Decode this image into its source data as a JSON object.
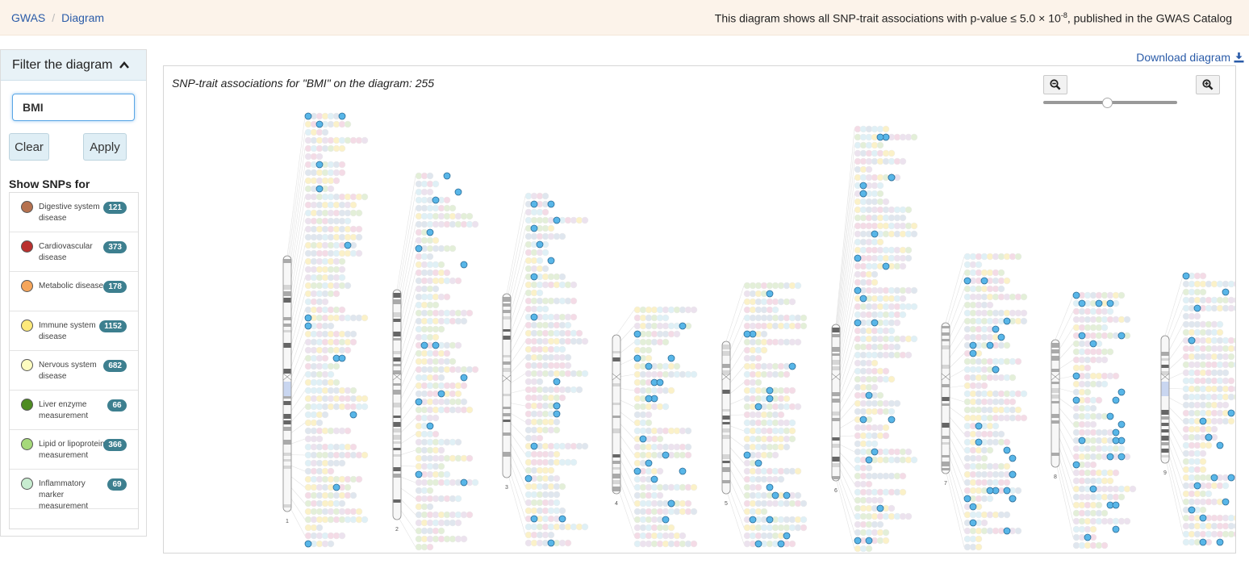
{
  "breadcrumb": {
    "home": "GWAS",
    "current": "Diagram"
  },
  "notice": {
    "prefix": "This diagram shows all SNP-trait associations with p-value ≤ 5.0 × 10",
    "exponent": "-8",
    "suffix": ", published in the GWAS Catalog"
  },
  "sidebar": {
    "title": "Filter the diagram",
    "search_value": "BMI",
    "clear_label": "Clear",
    "apply_label": "Apply",
    "show_label": "Show SNPs for",
    "categories": [
      {
        "label": "Digestive system disease",
        "count": "121",
        "color": "#b5714f"
      },
      {
        "label": "Cardiovascular disease",
        "count": "373",
        "color": "#b9302e"
      },
      {
        "label": "Metabolic disease",
        "count": "178",
        "color": "#f5a55a"
      },
      {
        "label": "Immune system disease",
        "count": "1152",
        "color": "#fde97a"
      },
      {
        "label": "Nervous system disease",
        "count": "682",
        "color": "#fdfcc0"
      },
      {
        "label": "Liver enzyme measurement",
        "count": "66",
        "color": "#4e8c22"
      },
      {
        "label": "Lipid or lipoprotein measurement",
        "count": "366",
        "color": "#a6d97a"
      },
      {
        "label": "Inflammatory marker measurement",
        "count": "69",
        "color": "#c8ecd0"
      }
    ]
  },
  "download_label": "Download diagram",
  "diagram": {
    "title": "SNP-trait associations for \"BMI\" on the diagram: 255",
    "chromosome_labels": [
      "1",
      "2",
      "3",
      "4",
      "5",
      "6",
      "7",
      "8",
      "9"
    ],
    "colors": {
      "highlight": "#58b6e8",
      "faded": [
        "#dfe6ee",
        "#f4dbe6",
        "#fbf1c8",
        "#dff0f6",
        "#e3efd8",
        "#ece2ee"
      ]
    }
  }
}
